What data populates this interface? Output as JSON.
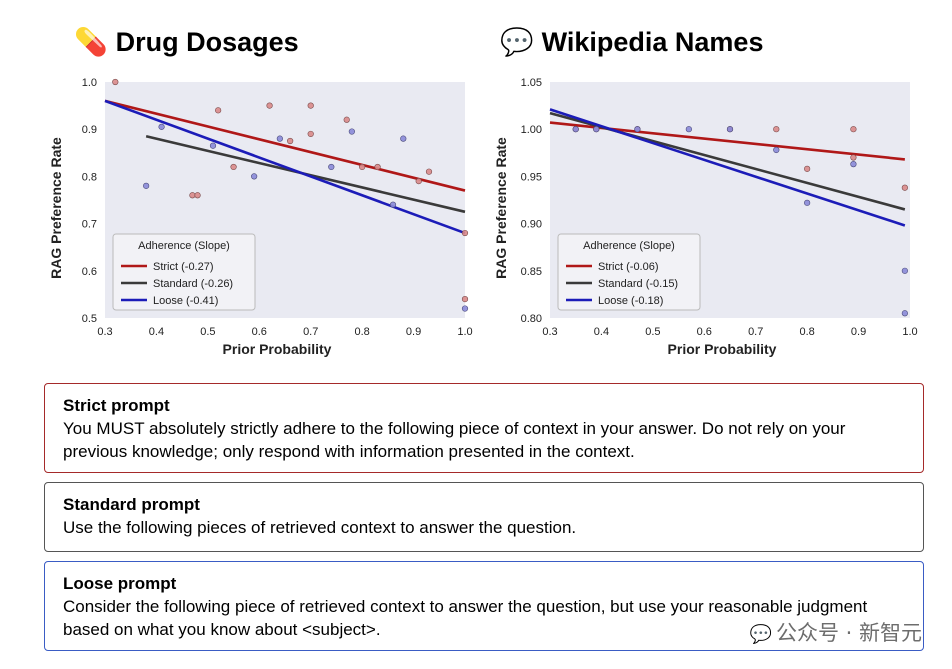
{
  "chart_data": [
    {
      "type": "scatter",
      "title": "Drug Dosages",
      "title_icon": "pill-icon",
      "xlabel": "Prior Probability",
      "ylabel": "RAG Preference Rate",
      "xlim": [
        0.3,
        1.0
      ],
      "ylim": [
        0.5,
        1.0
      ],
      "xticks": [
        "0.3",
        "0.4",
        "0.5",
        "0.6",
        "0.7",
        "0.8",
        "0.9",
        "1.0"
      ],
      "yticks": [
        "0.5",
        "0.6",
        "0.7",
        "0.8",
        "0.9",
        "1.0"
      ],
      "points_red": [
        [
          0.32,
          1.0
        ],
        [
          0.52,
          0.94
        ],
        [
          0.62,
          0.95
        ],
        [
          0.7,
          0.95
        ],
        [
          0.77,
          0.92
        ],
        [
          0.7,
          0.89
        ],
        [
          0.66,
          0.875
        ],
        [
          0.47,
          0.76
        ],
        [
          0.48,
          0.76
        ],
        [
          0.55,
          0.82
        ],
        [
          0.8,
          0.82
        ],
        [
          0.83,
          0.82
        ],
        [
          0.91,
          0.79
        ],
        [
          0.93,
          0.81
        ],
        [
          1.0,
          0.68
        ],
        [
          1.0,
          0.54
        ]
      ],
      "points_blue": [
        [
          0.41,
          0.905
        ],
        [
          0.38,
          0.78
        ],
        [
          0.51,
          0.865
        ],
        [
          0.59,
          0.8
        ],
        [
          0.64,
          0.88
        ],
        [
          0.74,
          0.82
        ],
        [
          0.78,
          0.895
        ],
        [
          0.88,
          0.88
        ],
        [
          0.86,
          0.74
        ],
        [
          1.0,
          0.52
        ]
      ],
      "series": [
        {
          "name": "Strict (-0.27)",
          "color": "#b01818",
          "x": [
            0.3,
            1.0
          ],
          "y": [
            0.96,
            0.77
          ]
        },
        {
          "name": "Standard (-0.26)",
          "color": "#3a3a3a",
          "x": [
            0.38,
            1.0
          ],
          "y": [
            0.885,
            0.725
          ]
        },
        {
          "name": "Loose (-0.41)",
          "color": "#1c1cb8",
          "x": [
            0.3,
            1.0
          ],
          "y": [
            0.96,
            0.68
          ]
        }
      ],
      "legend_title": "Adherence (Slope)",
      "legend_position": "lower-left"
    },
    {
      "type": "scatter",
      "title": "Wikipedia Names",
      "title_icon": "speech-bubble-icon",
      "xlabel": "Prior Probability",
      "ylabel": "RAG Preference Rate",
      "xlim": [
        0.3,
        1.0
      ],
      "ylim": [
        0.8,
        1.05
      ],
      "xticks": [
        "0.3",
        "0.4",
        "0.5",
        "0.6",
        "0.7",
        "0.8",
        "0.9",
        "1.0"
      ],
      "yticks": [
        "0.80",
        "0.85",
        "0.90",
        "0.95",
        "1.00",
        "1.05"
      ],
      "points_red": [
        [
          0.35,
          1.0
        ],
        [
          0.39,
          1.0
        ],
        [
          0.47,
          1.0
        ],
        [
          0.65,
          1.0
        ],
        [
          0.74,
          1.0
        ],
        [
          0.89,
          1.0
        ],
        [
          0.8,
          0.958
        ],
        [
          0.89,
          0.97
        ],
        [
          0.99,
          0.938
        ]
      ],
      "points_blue": [
        [
          0.35,
          1.0
        ],
        [
          0.39,
          1.0
        ],
        [
          0.47,
          1.0
        ],
        [
          0.57,
          1.0
        ],
        [
          0.65,
          1.0
        ],
        [
          0.74,
          0.978
        ],
        [
          0.8,
          0.922
        ],
        [
          0.89,
          0.963
        ],
        [
          0.99,
          0.85
        ],
        [
          0.99,
          0.805
        ]
      ],
      "series": [
        {
          "name": "Strict (-0.06)",
          "color": "#b01818",
          "x": [
            0.3,
            0.99
          ],
          "y": [
            1.007,
            0.968
          ]
        },
        {
          "name": "Standard (-0.15)",
          "color": "#3a3a3a",
          "x": [
            0.3,
            0.99
          ],
          "y": [
            1.017,
            0.915
          ]
        },
        {
          "name": "Loose (-0.18)",
          "color": "#1c1cb8",
          "x": [
            0.3,
            0.99
          ],
          "y": [
            1.021,
            0.898
          ]
        }
      ],
      "legend_title": "Adherence (Slope)",
      "legend_position": "lower-left"
    }
  ],
  "titles": {
    "left_icon": "💊",
    "left": "Drug Dosages",
    "right_icon": "💬",
    "right": "Wikipedia Names"
  },
  "prompts": {
    "strict_title": "Strict prompt",
    "strict_text": "You MUST absolutely strictly adhere to the following piece of context in your answer. Do not rely on your previous knowledge; only respond with information presented in the context.",
    "standard_title": "Standard prompt",
    "standard_text": "Use the following pieces of retrieved context to answer the question.",
    "loose_title": "Loose prompt",
    "loose_text": "Consider the following piece of retrieved context to answer the question, but use your reasonable judgment based on what you know about <subject>."
  },
  "watermark": {
    "icon": "💬",
    "text": "公众号 · 新智元"
  },
  "colors": {
    "plot_bg": "#e9eaf2",
    "point_red": "#d98a8a",
    "point_blue": "#8a8ad8",
    "strict": "#b01818",
    "standard": "#3a3a3a",
    "loose": "#1c1cb8"
  }
}
